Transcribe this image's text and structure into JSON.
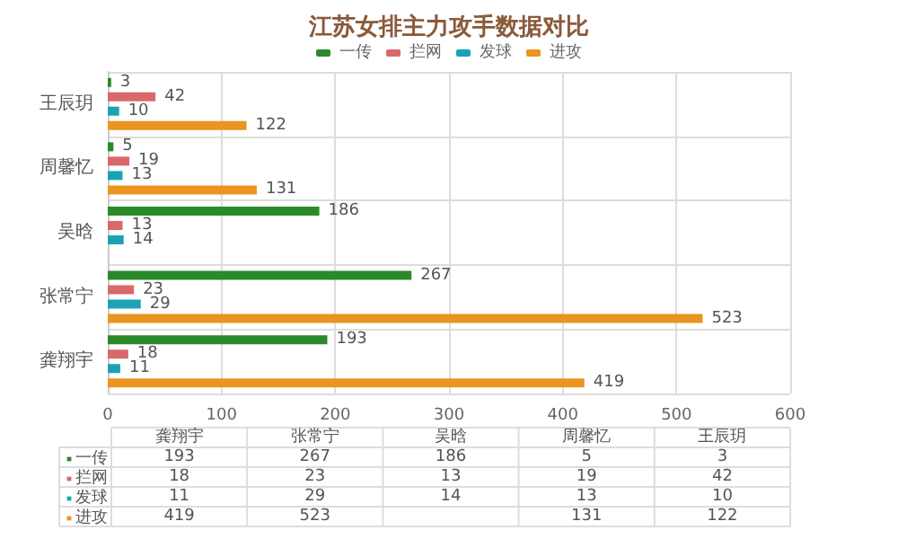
{
  "chart_data": [
    {
      "type": "bar",
      "title": "江苏女排主力攻手数据对比",
      "orientation": "horizontal",
      "categories": [
        "王辰玥",
        "周馨忆",
        "吴晗",
        "张常宁",
        "龚翔宇"
      ],
      "series": [
        {
          "name": "一传",
          "color": "#2a8a2a",
          "values": [
            3,
            5,
            186,
            267,
            193
          ]
        },
        {
          "name": "拦网",
          "color": "#d9686b",
          "values": [
            42,
            19,
            13,
            23,
            18
          ]
        },
        {
          "name": "发球",
          "color": "#1ba3b5",
          "values": [
            10,
            13,
            14,
            29,
            11
          ]
        },
        {
          "name": "进攻",
          "color": "#eb9420",
          "values": [
            122,
            131,
            null,
            523,
            419
          ]
        }
      ],
      "xlim": [
        0,
        600
      ],
      "xticks": [
        0,
        100,
        200,
        300,
        400,
        500,
        600
      ],
      "grid": true,
      "legend": "top",
      "data_labels": true
    },
    {
      "type": "other",
      "categories": [
        "龚翔宇",
        "张常宁",
        "吴晗",
        "周馨忆",
        "王辰玥"
      ],
      "series": [
        {
          "name": "一传",
          "color": "#2a8a2a",
          "values": [
            193,
            267,
            186,
            5,
            3
          ]
        },
        {
          "name": "拦网",
          "color": "#d9686b",
          "values": [
            18,
            23,
            13,
            19,
            42
          ]
        },
        {
          "name": "发球",
          "color": "#1ba3b5",
          "values": [
            11,
            29,
            14,
            13,
            10
          ]
        },
        {
          "name": "进攻",
          "color": "#eb9420",
          "values": [
            419,
            523,
            null,
            131,
            122
          ]
        }
      ],
      "legend": "left",
      "data_labels": true
    }
  ]
}
